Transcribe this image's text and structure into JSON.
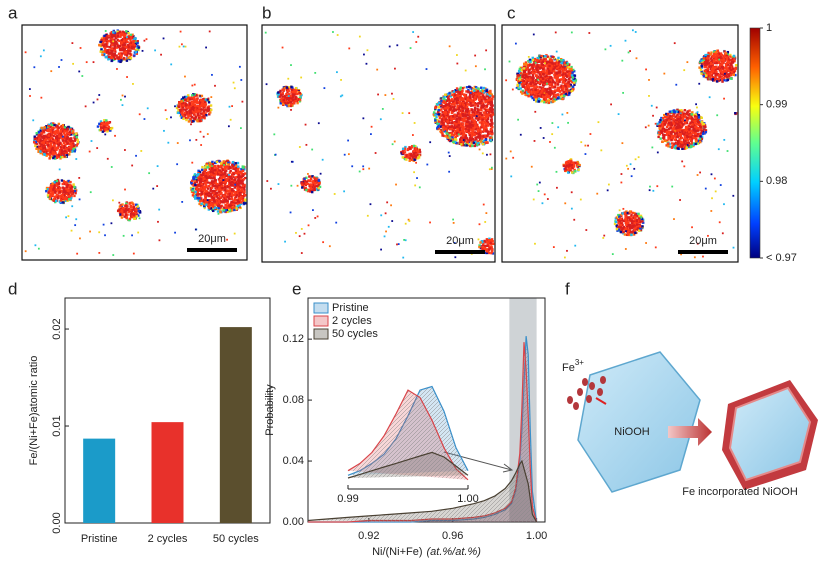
{
  "panel_labels": [
    "a",
    "b",
    "c",
    "d",
    "e",
    "f"
  ],
  "maps": [
    {
      "scale_bar": "20μm"
    },
    {
      "scale_bar": "20μm"
    },
    {
      "scale_bar": "20μm"
    }
  ],
  "colorbar": {
    "lim": [
      0.97,
      1
    ],
    "ticks": [
      1,
      0.99,
      0.98,
      {
        "value": 0.97,
        "label": "< 0.97"
      }
    ]
  },
  "chart_data": [
    {
      "type": "bar",
      "y_label": "Fe/(Ni+Fe)atomic ratio",
      "categories": [
        "Pristine",
        "2 cycles",
        "50 cycles"
      ],
      "values": [
        0.0087,
        0.0104,
        0.0202
      ],
      "colors": [
        "#1b9bc9",
        "#e8312b",
        "#5b4f2e"
      ],
      "ylim": [
        0,
        0.0232
      ],
      "yticks": [
        {
          "value": 0,
          "label": "0.00"
        },
        {
          "value": 0.01,
          "label": "0.01"
        },
        {
          "value": 0.02,
          "label": "0.02"
        }
      ]
    },
    {
      "type": "line",
      "y_label": "Probability",
      "x_label": "Ni/(Ni+Fe)",
      "x_label_unit": "(at.%/at.%)",
      "x": [
        0.891,
        0.9,
        0.91,
        0.92,
        0.93,
        0.94,
        0.95,
        0.96,
        0.97,
        0.975,
        0.98,
        0.985,
        0.988,
        0.99,
        0.992,
        0.993,
        0.994,
        0.995,
        0.996,
        0.997,
        0.998,
        1.0
      ],
      "series": [
        {
          "name": "Pristine",
          "color": "#3a8fc9",
          "values": [
            0,
            0,
            0,
            0,
            0,
            0,
            0.001,
            0.001,
            0.002,
            0.003,
            0.005,
            0.008,
            0.012,
            0.02,
            0.04,
            0.06,
            0.09,
            0.122,
            0.11,
            0.06,
            0.02,
            0
          ]
        },
        {
          "name": "2 cycles",
          "color": "#d9454a",
          "values": [
            0,
            0,
            0,
            0.001,
            0.001,
            0.001,
            0.002,
            0.002,
            0.003,
            0.004,
            0.006,
            0.009,
            0.013,
            0.022,
            0.045,
            0.075,
            0.118,
            0.1,
            0.07,
            0.035,
            0.01,
            0
          ]
        },
        {
          "name": "50 cycles",
          "color": "#4a4133",
          "values": [
            0.001,
            0.002,
            0.003,
            0.004,
            0.005,
            0.006,
            0.007,
            0.009,
            0.012,
            0.014,
            0.017,
            0.022,
            0.027,
            0.032,
            0.038,
            0.04,
            0.035,
            0.03,
            0.025,
            0.015,
            0.005,
            0
          ]
        }
      ],
      "xlim": [
        0.891,
        1.004
      ],
      "ylim": [
        0,
        0.147
      ],
      "xticks": [
        0.92,
        0.96,
        {
          "value": 1,
          "label": "1.00"
        }
      ],
      "yticks": [
        {
          "value": 0,
          "label": "0.00"
        },
        0.04,
        0.08,
        0.12
      ],
      "highlight": [
        0.987,
        1.0
      ]
    },
    {
      "type": "line",
      "x": [
        0.99,
        0.991,
        0.992,
        0.993,
        0.994,
        0.995,
        0.996,
        0.997,
        0.998,
        0.999,
        1.0
      ],
      "series": [
        {
          "color": "#3a8fc9",
          "values": [
            0.015,
            0.02,
            0.028,
            0.038,
            0.055,
            0.08,
            0.108,
            0.112,
            0.085,
            0.045,
            0.02
          ]
        },
        {
          "color": "#d9454a",
          "values": [
            0.02,
            0.028,
            0.04,
            0.058,
            0.082,
            0.108,
            0.1,
            0.075,
            0.045,
            0.022,
            0.01
          ]
        },
        {
          "color": "#4a4133",
          "values": [
            0.012,
            0.016,
            0.02,
            0.024,
            0.028,
            0.032,
            0.036,
            0.04,
            0.035,
            0.025,
            0.015
          ]
        }
      ],
      "xlim": [
        0.99,
        1.0
      ],
      "ylim": [
        0,
        0.13
      ],
      "xticks": [
        0.99,
        {
          "value": 1,
          "label": "1.00"
        }
      ]
    }
  ],
  "diagram": {
    "ion": "Fe",
    "ion_charge": "3+",
    "crystal": "NiOOH",
    "result": "Fe incorporated NiOOH"
  }
}
